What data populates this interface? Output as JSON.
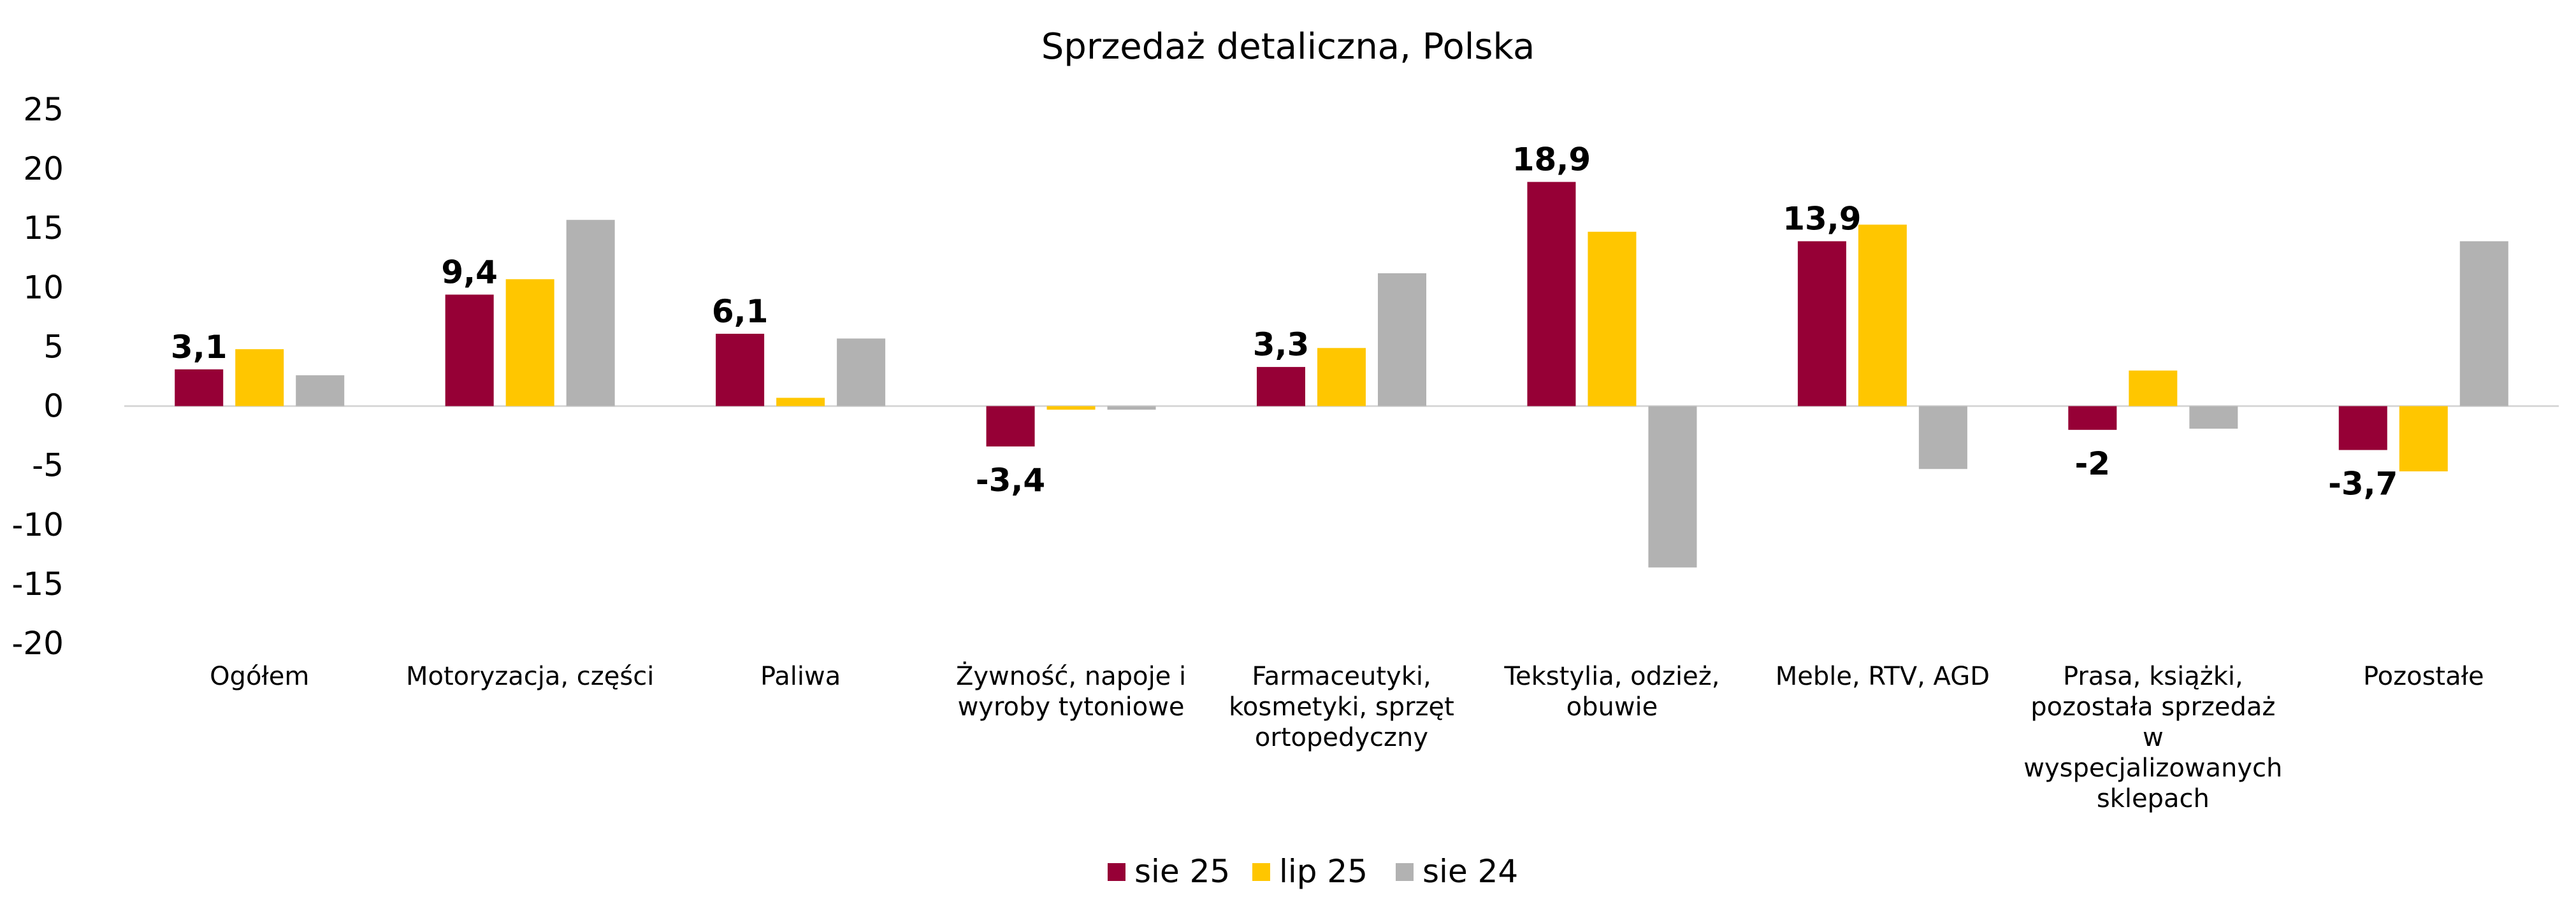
{
  "chart_data": {
    "type": "bar",
    "title": "Sprzedaż detaliczna, Polska",
    "categories": [
      [
        "Ogółem"
      ],
      [
        "Motoryzacja, części"
      ],
      [
        "Paliwa"
      ],
      [
        "Żywność, napoje i",
        "wyroby tytoniowe"
      ],
      [
        "Farmaceutyki,",
        "kosmetyki, sprzęt",
        "ortopedyczny"
      ],
      [
        "Tekstylia, odzież,",
        "obuwie"
      ],
      [
        "Meble, RTV, AGD"
      ],
      [
        "Prasa, książki,",
        "pozostała sprzedaż",
        "w",
        "wyspecjalizowanych",
        "sklepach"
      ],
      [
        "Pozostałe"
      ]
    ],
    "series": [
      {
        "name": "sie 25",
        "color": "#960036",
        "values": [
          3.1,
          9.4,
          6.1,
          -3.4,
          3.3,
          18.9,
          13.9,
          -2,
          -3.7
        ]
      },
      {
        "name": "lip 25",
        "color": "#FFC600",
        "values": [
          4.8,
          10.7,
          0.7,
          -0.3,
          4.9,
          14.7,
          15.3,
          3.0,
          -5.5
        ]
      },
      {
        "name": "sie 24",
        "color": "#B2B2B2",
        "values": [
          2.6,
          15.7,
          5.7,
          -0.3,
          11.2,
          -13.6,
          -5.3,
          -1.9,
          13.9
        ]
      }
    ],
    "data_labels": [
      "3,1",
      "9,4",
      "6,1",
      "-3,4",
      "3,3",
      "18,9",
      "13,9",
      "-2",
      "-3,7"
    ],
    "y_ticks": [
      "25",
      "20",
      "15",
      "10",
      "5",
      "0",
      "-5",
      "-10",
      "-15",
      "-20"
    ],
    "ylim": [
      -20,
      25
    ],
    "xlabel": "",
    "ylabel": "",
    "legend_position": "bottom"
  }
}
